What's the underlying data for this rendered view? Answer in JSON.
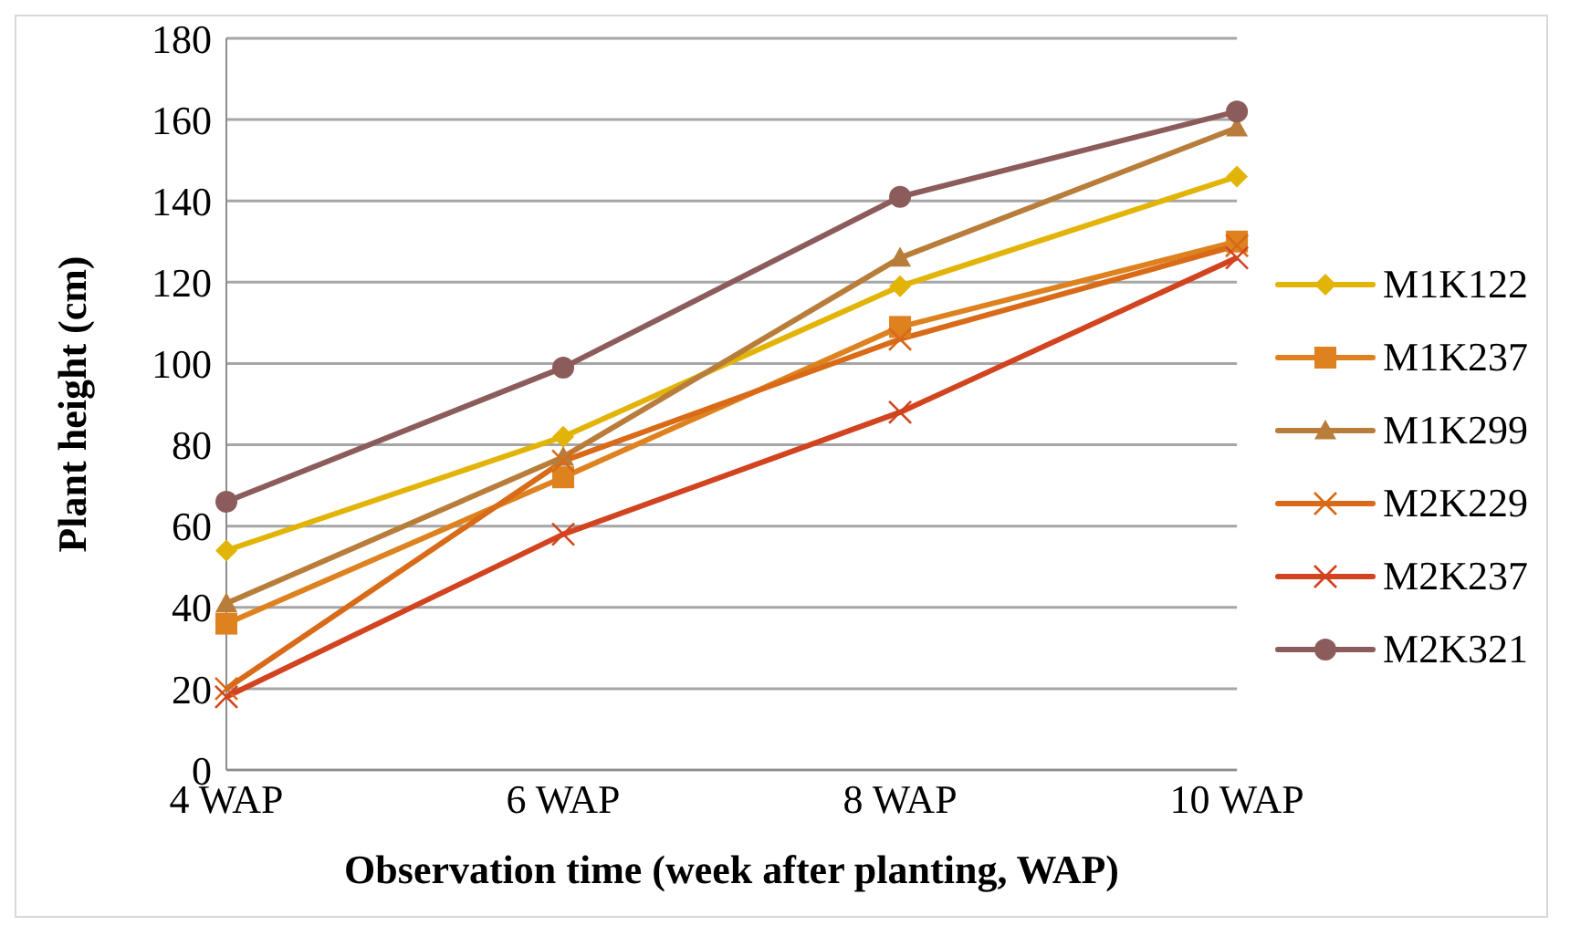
{
  "chart_data": {
    "type": "line",
    "xlabel": "Observation time (week after planting, WAP)",
    "ylabel": "Plant height (cm)",
    "categories": [
      "4 WAP",
      "6 WAP",
      "8 WAP",
      "10 WAP"
    ],
    "series": [
      {
        "name": "M1K122",
        "color": "#e2b407",
        "marker": "diamond",
        "values": [
          54,
          82,
          119,
          146
        ]
      },
      {
        "name": "M1K237",
        "color": "#de8220",
        "marker": "square",
        "values": [
          36,
          72,
          109,
          130
        ]
      },
      {
        "name": "M1K299",
        "color": "#b87d3a",
        "marker": "triangle",
        "values": [
          41,
          77,
          126,
          158
        ]
      },
      {
        "name": "M2K229",
        "color": "#d86a18",
        "marker": "cross",
        "values": [
          20,
          76,
          106,
          129
        ]
      },
      {
        "name": "M2K237",
        "color": "#d2431f",
        "marker": "cross",
        "values": [
          18,
          58,
          88,
          126
        ]
      },
      {
        "name": "M2K321",
        "color": "#8c5c5c",
        "marker": "circle",
        "values": [
          66,
          99,
          141,
          162
        ]
      }
    ],
    "ylim": [
      0,
      180
    ],
    "yticks": [
      0,
      20,
      40,
      60,
      80,
      100,
      120,
      140,
      160,
      180
    ],
    "grid": "y",
    "legend": "right"
  }
}
